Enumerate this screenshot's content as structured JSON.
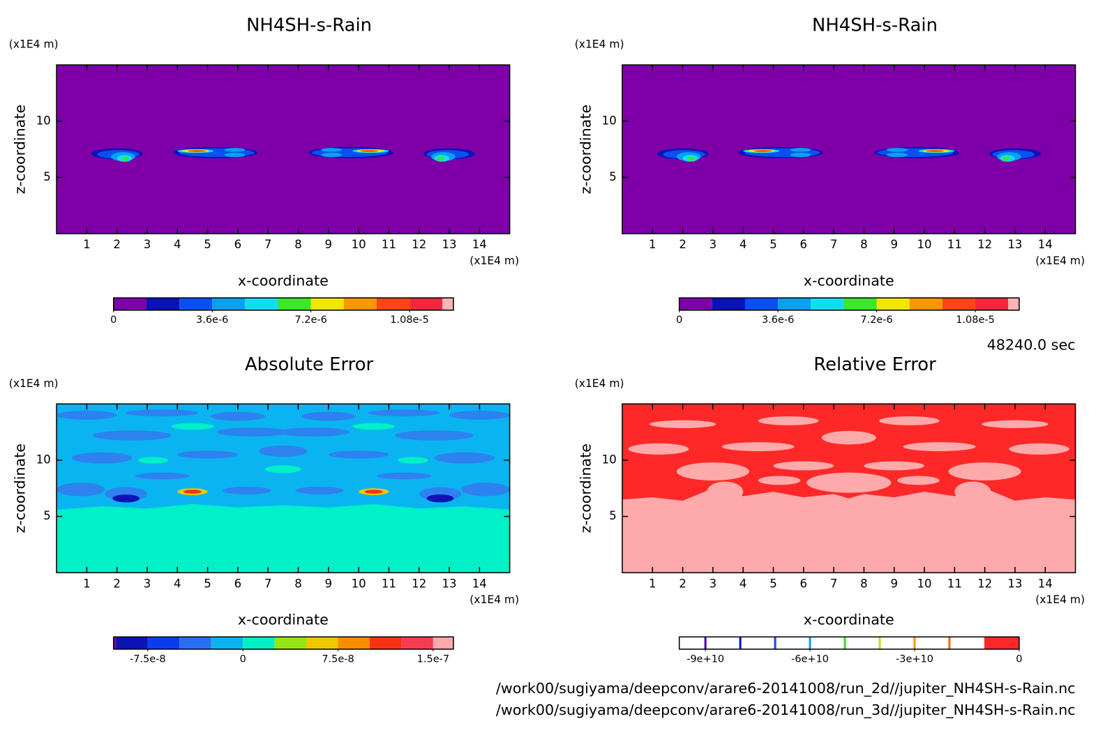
{
  "chart_data": [
    {
      "type": "contour",
      "title": "NH4SH-s-Rain",
      "xlabel": "x-coordinate",
      "ylabel": "z-coordinate",
      "xunit": "(x1E4 m)",
      "yunit": "(x1E4 m)",
      "xlim": [
        0,
        15
      ],
      "ylim": [
        0,
        15
      ],
      "xticks": [
        1,
        2,
        3,
        4,
        5,
        6,
        7,
        8,
        9,
        10,
        11,
        12,
        13,
        14
      ],
      "yticks": [
        5,
        10
      ],
      "background": "#7d00a8",
      "colorbar": {
        "levels": [
          0,
          1.2e-06,
          2.4e-06,
          3.6e-06,
          4.8e-06,
          6e-06,
          7.2e-06,
          8.4e-06,
          9.6e-06,
          1.08e-05,
          1.2e-05,
          1.24e-05
        ],
        "colors": [
          "#7d00a8",
          "#0a14b4",
          "#0a50f0",
          "#0aa0f0",
          "#14dcf0",
          "#3ce628",
          "#f0e600",
          "#fa9600",
          "#fa4614",
          "#f0283c",
          "#ffb4b4"
        ],
        "ticks": [
          0,
          {
            "value": 3.6e-06,
            "label": "3.6e-6"
          },
          {
            "value": 7.2e-06,
            "label": "7.2e-6"
          },
          {
            "value": 1.08e-05,
            "label": "1.08e-5"
          }
        ]
      }
    },
    {
      "type": "contour",
      "title": "NH4SH-s-Rain",
      "xlabel": "x-coordinate",
      "ylabel": "z-coordinate",
      "xunit": "(x1E4 m)",
      "yunit": "(x1E4 m)",
      "xlim": [
        0,
        15
      ],
      "ylim": [
        0,
        15
      ],
      "xticks": [
        1,
        2,
        3,
        4,
        5,
        6,
        7,
        8,
        9,
        10,
        11,
        12,
        13,
        14
      ],
      "yticks": [
        5,
        10
      ],
      "background": "#7d00a8",
      "colorbar": {
        "levels": [
          0,
          1.2e-06,
          2.4e-06,
          3.6e-06,
          4.8e-06,
          6e-06,
          7.2e-06,
          8.4e-06,
          9.6e-06,
          1.08e-05,
          1.2e-05,
          1.24e-05
        ],
        "colors": [
          "#7d00a8",
          "#0a14b4",
          "#0a50f0",
          "#0aa0f0",
          "#14dcf0",
          "#3ce628",
          "#f0e600",
          "#fa9600",
          "#fa4614",
          "#f0283c",
          "#ffb4b4"
        ],
        "ticks": [
          0,
          {
            "value": 3.6e-06,
            "label": "3.6e-6"
          },
          {
            "value": 7.2e-06,
            "label": "7.2e-6"
          },
          {
            "value": 1.08e-05,
            "label": "1.08e-5"
          }
        ]
      }
    },
    {
      "type": "contour",
      "title": "Absolute Error",
      "xlabel": "x-coordinate",
      "ylabel": "z-coordinate",
      "xunit": "(x1E4 m)",
      "yunit": "(x1E4 m)",
      "xlim": [
        0,
        15
      ],
      "ylim": [
        0,
        15
      ],
      "xticks": [
        1,
        2,
        3,
        4,
        5,
        6,
        7,
        8,
        9,
        10,
        11,
        12,
        13,
        14
      ],
      "yticks": [
        5,
        10
      ],
      "background": "#00f0c8",
      "colorbar": {
        "levels": [
          -1.02e-07,
          -1e-07,
          -7.5e-08,
          -5e-08,
          -2.5e-08,
          0,
          2.5e-08,
          5e-08,
          7.5e-08,
          1e-07,
          1.25e-07,
          1.5e-07,
          1.66e-07
        ],
        "colors": [
          "#7d00a8",
          "#0a14b4",
          "#0a3cf0",
          "#286ef0",
          "#0ab4f0",
          "#00f0c8",
          "#96e614",
          "#f0c800",
          "#fa8c00",
          "#fa3214",
          "#f53c50",
          "#ffaaaa"
        ],
        "ticks": [
          {
            "value": -7.5e-08,
            "label": "-7.5e-8"
          },
          0,
          {
            "value": 7.5e-08,
            "label": "7.5e-8"
          },
          {
            "value": 1.5e-07,
            "label": "1.5e-7"
          }
        ]
      }
    },
    {
      "type": "contour",
      "title": "Relative Error",
      "xlabel": "x-coordinate",
      "ylabel": "z-coordinate",
      "xunit": "(x1E4 m)",
      "yunit": "(x1E4 m)",
      "xlim": [
        0,
        15
      ],
      "ylim": [
        0,
        15
      ],
      "xticks": [
        1,
        2,
        3,
        4,
        5,
        6,
        7,
        8,
        9,
        10,
        11,
        12,
        13,
        14
      ],
      "yticks": [
        5,
        10
      ],
      "background": "#ffaaaa",
      "colorbar": {
        "levels": [
          -97500000000.0,
          -90000000000.0,
          -80000000000.0,
          -70000000000.0,
          -60000000000.0,
          -50000000000.0,
          -40000000000.0,
          -30000000000.0,
          -20000000000.0,
          -10000000000.0,
          0
        ],
        "colors": [
          "#ffffff",
          "#ffffff",
          "#ffffff",
          "#ffffff",
          "#ffffff",
          "#ffffff",
          "#ffffff",
          "#ffffff",
          "#ffffff",
          "#ff2828"
        ],
        "line_colors": [
          "#5000b4",
          "#0a14c8",
          "#0a50f0",
          "#0a9cf0",
          "#3cdc28",
          "#b4e614",
          "#fa9600",
          "#fa6414"
        ],
        "ticks": [
          {
            "value": -90000000000.0,
            "label": "-9e+10"
          },
          {
            "value": -60000000000.0,
            "label": "-6e+10"
          },
          {
            "value": -30000000000.0,
            "label": "-3e+10"
          },
          0
        ]
      }
    }
  ],
  "time_label": "48240.0 sec",
  "files": [
    "/work00/sugiyama/deepconv/arare6-20141008/run_2d//jupiter_NH4SH-s-Rain.nc",
    "/work00/sugiyama/deepconv/arare6-20141008/run_3d//jupiter_NH4SH-s-Rain.nc"
  ]
}
